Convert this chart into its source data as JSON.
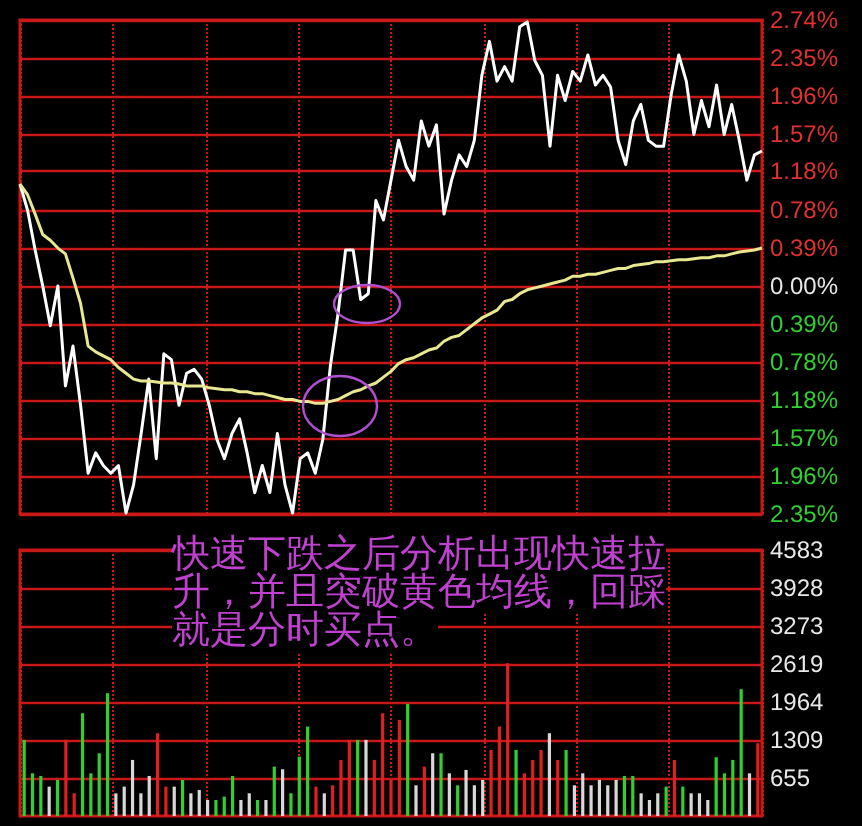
{
  "chart_data": [
    {
      "type": "line",
      "categories": [
        null,
        null,
        null,
        null,
        null,
        null,
        null,
        null,
        null,
        null,
        null,
        null,
        null,
        null,
        null,
        null,
        null,
        null,
        null,
        null,
        null,
        null,
        null,
        null,
        null,
        null,
        null,
        null,
        null,
        null,
        null,
        null,
        null,
        null,
        null,
        null,
        null,
        null,
        null,
        null,
        null,
        null,
        null,
        null,
        null,
        null,
        null,
        null,
        null,
        null,
        null,
        null,
        null,
        null,
        null,
        null,
        null,
        null,
        null,
        null,
        null,
        null,
        null,
        null,
        null,
        null,
        null,
        null,
        null,
        null,
        null,
        null,
        null,
        null,
        null,
        null,
        null,
        null,
        null,
        null,
        null,
        null,
        null,
        null,
        null,
        null,
        null,
        null,
        null,
        null,
        null,
        null,
        null,
        null,
        null,
        null,
        null,
        null,
        null
      ],
      "series": [
        {
          "color": "#ffffff",
          "values": [
            1.05,
            0.78,
            0.37,
            0,
            -0.41,
            0,
            -1.03,
            -0.62,
            -1.23,
            -1.93,
            -1.72,
            -1.85,
            -1.93,
            -1.85,
            -2.34,
            -2.05,
            -1.52,
            -0.96,
            -1.78,
            -0.7,
            -0.76,
            -1.23,
            -0.9,
            -0.86,
            -0.96,
            -1.23,
            -1.58,
            -1.78,
            -1.52,
            -1.37,
            -1.72,
            -2.13,
            -1.85,
            -2.13,
            -1.52,
            -2.05,
            -2.34,
            -1.78,
            -1.72,
            -1.93,
            -1.58,
            -0.82,
            -0.29,
            0.37,
            0.37,
            -0.14,
            -0.08,
            0.88,
            0.68,
            1.09,
            1.5,
            1.23,
            1.09,
            1.7,
            1.44,
            1.66,
            0.74,
            1.09,
            1.35,
            1.23,
            1.5,
            2.17,
            2.52,
            2.11,
            2.26,
            2.11,
            2.67,
            2.72,
            2.32,
            2.17,
            1.44,
            2.17,
            1.91,
            2.21,
            2.11,
            2.38,
            2.07,
            2.17,
            2.05,
            1.5,
            1.25,
            1.7,
            1.87,
            1.5,
            1.44,
            1.44,
            1.97,
            2.38,
            2.11,
            1.56,
            1.91,
            1.64,
            2.07,
            1.56,
            1.87,
            1.5,
            1.09,
            1.35,
            1.39
          ]
        },
        {
          "color": "#e8e890",
          "values": [
            1.05,
            0.94,
            0.74,
            0.53,
            0.47,
            0.39,
            0.33,
            0.08,
            -0.18,
            -0.62,
            -0.68,
            -0.72,
            -0.76,
            -0.84,
            -0.9,
            -0.96,
            -0.98,
            -0.98,
            -0.99,
            -1,
            -1,
            -1.01,
            -1.03,
            -1.03,
            -1.03,
            -1.05,
            -1.06,
            -1.07,
            -1.07,
            -1.09,
            -1.09,
            -1.11,
            -1.11,
            -1.13,
            -1.15,
            -1.17,
            -1.17,
            -1.19,
            -1.19,
            -1.21,
            -1.21,
            -1.19,
            -1.17,
            -1.13,
            -1.09,
            -1.07,
            -1.03,
            -1,
            -0.94,
            -0.88,
            -0.8,
            -0.76,
            -0.74,
            -0.7,
            -0.66,
            -0.64,
            -0.57,
            -0.53,
            -0.51,
            -0.45,
            -0.39,
            -0.33,
            -0.29,
            -0.25,
            -0.16,
            -0.14,
            -0.08,
            -0.04,
            -0.02,
            0,
            0.02,
            0.04,
            0.06,
            0.1,
            0.1,
            0.12,
            0.12,
            0.14,
            0.16,
            0.18,
            0.18,
            0.21,
            0.22,
            0.23,
            0.25,
            0.25,
            0.26,
            0.27,
            0.27,
            0.28,
            0.29,
            0.29,
            0.31,
            0.31,
            0.33,
            0.35,
            0.36,
            0.37,
            0.39
          ]
        }
      ],
      "ylim": [
        -2.35,
        2.74
      ],
      "yticks": [
        {
          "value": 2.74,
          "label": "2.74%"
        },
        {
          "value": 2.35,
          "label": "2.35%"
        },
        {
          "value": 1.96,
          "label": "1.96%"
        },
        {
          "value": 1.57,
          "label": "1.57%"
        },
        {
          "value": 1.18,
          "label": "1.18%"
        },
        {
          "value": 0.78,
          "label": "0.78%"
        },
        {
          "value": 0.39,
          "label": "0.39%"
        },
        {
          "value": 0,
          "label": "0.00%"
        },
        {
          "value": -0.39,
          "label": "0.39%"
        },
        {
          "value": -0.78,
          "label": "0.78%"
        },
        {
          "value": -1.18,
          "label": "1.18%"
        },
        {
          "value": -1.57,
          "label": "1.57%"
        },
        {
          "value": -1.96,
          "label": "1.96%"
        },
        {
          "value": -2.35,
          "label": "2.35%"
        }
      ],
      "grid": true,
      "tick_labels": "y"
    },
    {
      "type": "bar",
      "categories": [
        null,
        null,
        null,
        null,
        null,
        null,
        null,
        null,
        null,
        null,
        null,
        null,
        null,
        null,
        null,
        null,
        null,
        null,
        null,
        null,
        null,
        null,
        null,
        null,
        null,
        null,
        null,
        null,
        null,
        null,
        null,
        null,
        null,
        null,
        null,
        null,
        null,
        null,
        null,
        null,
        null,
        null,
        null,
        null,
        null,
        null,
        null,
        null,
        null,
        null,
        null,
        null,
        null,
        null,
        null,
        null,
        null,
        null,
        null,
        null,
        null,
        null,
        null,
        null,
        null,
        null,
        null,
        null,
        null,
        null,
        null,
        null,
        null,
        null,
        null,
        null,
        null,
        null,
        null,
        null,
        null,
        null,
        null,
        null,
        null,
        null,
        null,
        null,
        null
      ],
      "values": [
        1311,
        735,
        690,
        506,
        621,
        1311,
        391,
        1771,
        735,
        1081,
        2116,
        391,
        506,
        966,
        391,
        690,
        1426,
        506,
        506,
        621,
        391,
        449,
        276,
        276,
        334,
        690,
        276,
        391,
        276,
        276,
        851,
        805,
        391,
        1023,
        1541,
        506,
        391,
        529,
        966,
        1311,
        1311,
        1311,
        966,
        1771,
        621,
        1656,
        1932,
        529,
        851,
        1081,
        1081,
        735,
        529,
        794,
        529,
        621,
        1138,
        1541,
        2633,
        1138,
        735,
        966,
        1138,
        1426,
        966,
        1138,
        529,
        735,
        529,
        621,
        529,
        621,
        690,
        690,
        391,
        276,
        391,
        506,
        966,
        506,
        391,
        391,
        276,
        1012,
        735,
        966,
        2185,
        735,
        1254
      ],
      "colors": [
        "#30d030",
        "#30d030",
        "#30d030",
        "#d8d8d8",
        "#30d030",
        "#e02020",
        "#e02020",
        "#30d030",
        "#30d030",
        "#30d030",
        "#30d030",
        "#d8d8d8",
        "#d8d8d8",
        "#d8d8d8",
        "#d8d8d8",
        "#d8d8d8",
        "#e02020",
        "#e02020",
        "#d8d8d8",
        "#30d030",
        "#d8d8d8",
        "#d8d8d8",
        "#d8d8d8",
        "#30d030",
        "#30d030",
        "#30d030",
        "#d8d8d8",
        "#d8d8d8",
        "#30d030",
        "#d8d8d8",
        "#30d030",
        "#d8d8d8",
        "#30d030",
        "#30d030",
        "#30d030",
        "#e02020",
        "#d8d8d8",
        "#e02020",
        "#e02020",
        "#e02020",
        "#30d030",
        "#d8d8d8",
        "#e02020",
        "#e02020",
        "#e02020",
        "#e02020",
        "#30d030",
        "#d8d8d8",
        "#e02020",
        "#d8d8d8",
        "#30d030",
        "#d8d8d8",
        "#30d030",
        "#d8d8d8",
        "#d8d8d8",
        "#d8d8d8",
        "#e02020",
        "#e02020",
        "#e02020",
        "#30d030",
        "#e02020",
        "#e02020",
        "#e02020",
        "#d8d8d8",
        "#e02020",
        "#30d030",
        "#d8d8d8",
        "#d8d8d8",
        "#d8d8d8",
        "#d8d8d8",
        "#d8d8d8",
        "#d8d8d8",
        "#30d030",
        "#30d030",
        "#d8d8d8",
        "#d8d8d8",
        "#d8d8d8",
        "#30d030",
        "#e02020",
        "#30d030",
        "#d8d8d8",
        "#d8d8d8",
        "#d8d8d8",
        "#30d030",
        "#30d030",
        "#30d030",
        "#30d030",
        "#d8d8d8",
        "#e02020"
      ],
      "ylim": [
        0,
        4583
      ],
      "yticks": [
        655,
        1309,
        1964,
        2619,
        3273,
        3928,
        4583
      ],
      "grid": true,
      "tick_labels": "y",
      "annotations": [
        "快速下跌之后分析出现快速拉升，并且突破黄色均线，回踩就是分时买点。"
      ]
    }
  ]
}
